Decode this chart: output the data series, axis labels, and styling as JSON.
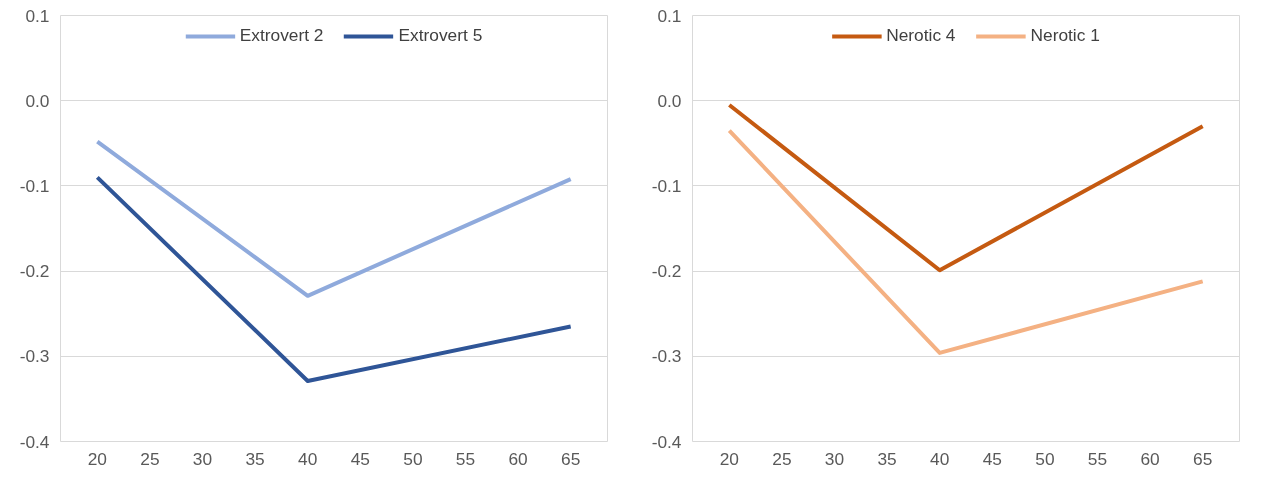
{
  "chart_data": [
    {
      "type": "line",
      "x": [
        20,
        40,
        65
      ],
      "xlim": [
        16.5,
        68.5
      ],
      "xticks": [
        20,
        25,
        30,
        35,
        40,
        45,
        50,
        55,
        60,
        65
      ],
      "ylim": [
        -0.4,
        0.1
      ],
      "yticks": [
        {
          "value": 0.1,
          "label": "0.1"
        },
        {
          "value": 0,
          "label": "0.0"
        },
        {
          "value": -0.1,
          "label": "-0.1"
        },
        {
          "value": -0.2,
          "label": "-0.2"
        },
        {
          "value": -0.3,
          "label": "-0.3"
        },
        {
          "value": -0.4,
          "label": "-0.4"
        }
      ],
      "grid": "y",
      "legend": "top",
      "marker": "none",
      "line_style": "solid",
      "series": [
        {
          "name": "Extrovert 2",
          "color": "#8faadc",
          "values": [
            -0.048,
            -0.229,
            -0.092
          ]
        },
        {
          "name": "Extrovert 5",
          "color": "#2f5597",
          "values": [
            -0.09,
            -0.329,
            -0.265
          ]
        }
      ]
    },
    {
      "type": "line",
      "x": [
        20,
        40,
        65
      ],
      "xlim": [
        16.5,
        68.5
      ],
      "xticks": [
        20,
        25,
        30,
        35,
        40,
        45,
        50,
        55,
        60,
        65
      ],
      "ylim": [
        -0.4,
        0.1
      ],
      "yticks": [
        {
          "value": 0.1,
          "label": "0.1"
        },
        {
          "value": 0,
          "label": "0.0"
        },
        {
          "value": -0.1,
          "label": "-0.1"
        },
        {
          "value": -0.2,
          "label": "-0.2"
        },
        {
          "value": -0.3,
          "label": "-0.3"
        },
        {
          "value": -0.4,
          "label": "-0.4"
        }
      ],
      "grid": "y",
      "legend": "top",
      "marker": "none",
      "line_style": "solid",
      "series": [
        {
          "name": "Nerotic 4",
          "color": "#c55a11",
          "values": [
            -0.005,
            -0.199,
            -0.03
          ]
        },
        {
          "name": "Nerotic 1",
          "color": "#f4b183",
          "values": [
            -0.035,
            -0.296,
            -0.212
          ]
        }
      ]
    }
  ]
}
